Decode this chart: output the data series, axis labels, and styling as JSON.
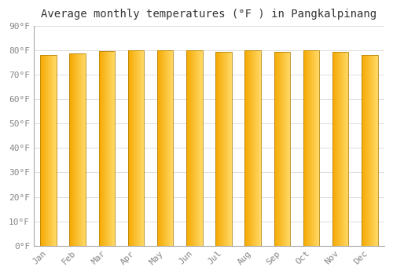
{
  "title": "Average monthly temperatures (°F ) in Pangkalpinang",
  "months": [
    "Jan",
    "Feb",
    "Mar",
    "Apr",
    "May",
    "Jun",
    "Jul",
    "Aug",
    "Sep",
    "Oct",
    "Nov",
    "Dec"
  ],
  "values": [
    78.1,
    78.8,
    79.7,
    80.1,
    80.1,
    80.2,
    79.5,
    80.2,
    79.5,
    80.1,
    79.3,
    78.3
  ],
  "ylim": [
    0,
    90
  ],
  "yticks": [
    0,
    10,
    20,
    30,
    40,
    50,
    60,
    70,
    80,
    90
  ],
  "ytick_labels": [
    "0°F",
    "10°F",
    "20°F",
    "30°F",
    "40°F",
    "50°F",
    "60°F",
    "70°F",
    "80°F",
    "90°F"
  ],
  "background_color": "#FFFFFF",
  "grid_color": "#DDDDDD",
  "title_fontsize": 10,
  "tick_fontsize": 8,
  "bar_width": 0.55,
  "bar_color_left": "#F5A800",
  "bar_color_right": "#FFD966",
  "bar_edge_color": "#B8860B",
  "n_segments": 80
}
